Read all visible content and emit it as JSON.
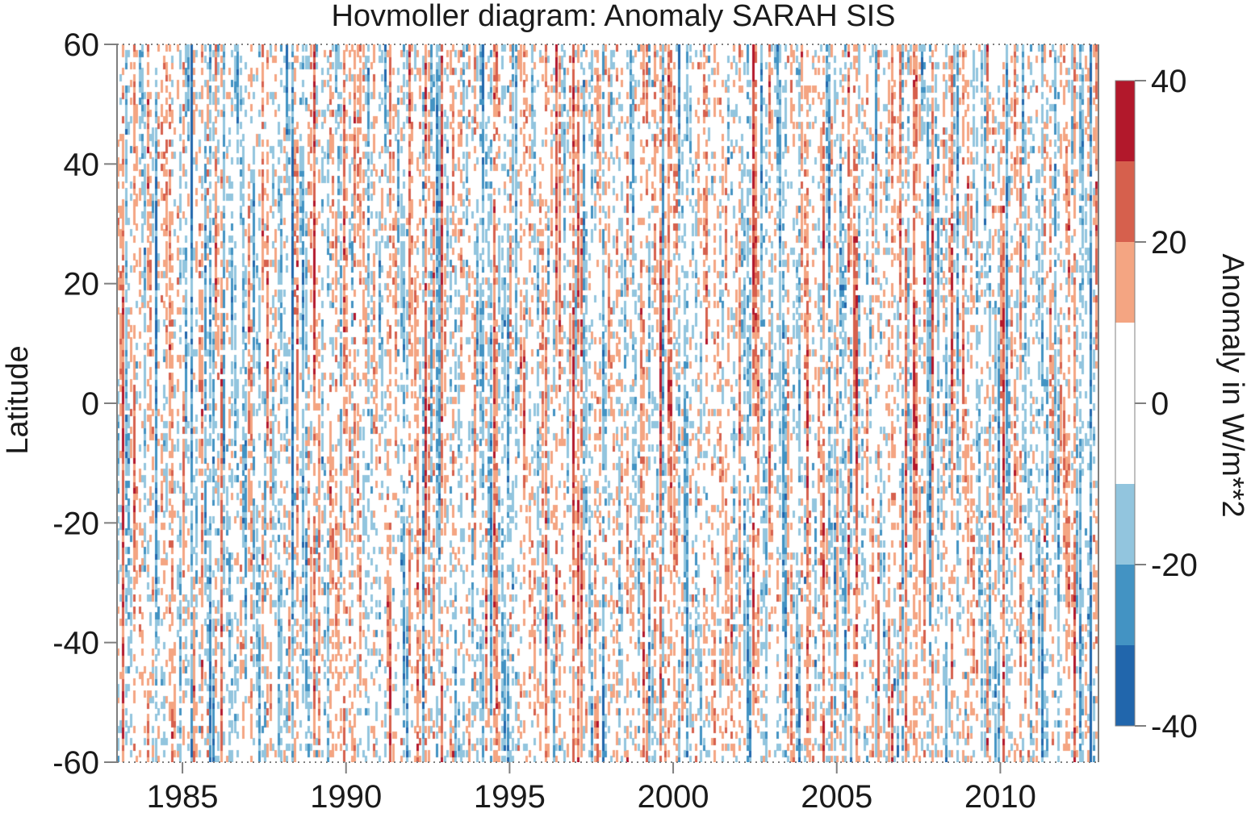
{
  "chart_data": {
    "type": "heatmap",
    "title": "Hovmoller diagram: Anomaly SARAH SIS",
    "xlabel": "",
    "ylabel": "Latitude",
    "xlim": [
      1983.0,
      2013.0
    ],
    "ylim": [
      -60,
      60
    ],
    "x_ticks": [
      1985,
      1990,
      1995,
      2000,
      2005,
      2010
    ],
    "y_ticks": [
      60,
      40,
      20,
      0,
      -20,
      -40,
      -60
    ],
    "colorbar": {
      "label": "Anomaly in W/m**2",
      "range": [
        -40,
        40
      ],
      "ticks": [
        40,
        20,
        0,
        -20,
        -40
      ],
      "bins": [
        {
          "min": 30,
          "max": 40,
          "color": "#b2182b"
        },
        {
          "min": 20,
          "max": 30,
          "color": "#d6604d"
        },
        {
          "min": 10,
          "max": 20,
          "color": "#f4a582"
        },
        {
          "min": -10,
          "max": 10,
          "color": "#ffffff"
        },
        {
          "min": -20,
          "max": -10,
          "color": "#92c5de"
        },
        {
          "min": -30,
          "max": -20,
          "color": "#4393c3"
        },
        {
          "min": -40,
          "max": -30,
          "color": "#2166ac"
        }
      ]
    },
    "legend": "colorbar right",
    "grid": false,
    "time_resolution": "monthly",
    "years": [
      1983,
      2013
    ],
    "latitude_resolution_deg": 1,
    "pattern": "mostly white (|anomaly|<10) with dense vertical streaks of alternating positive (red) and negative (blue) anomalies throughout the period"
  }
}
